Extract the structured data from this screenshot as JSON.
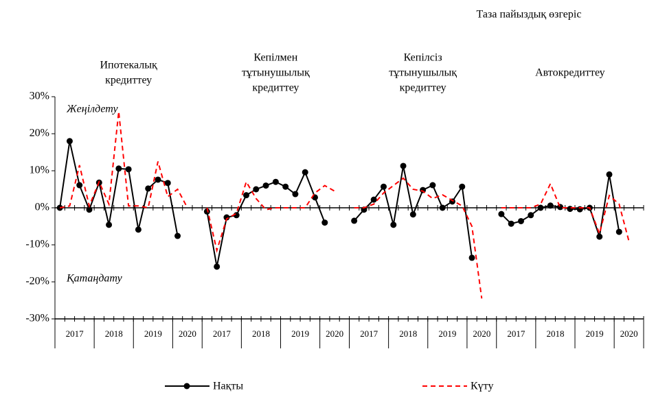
{
  "chart_data": {
    "type": "line",
    "title": "Таза пайыздық өзгеріс",
    "annotations": [
      "Жеңілдету",
      "Қатаңдату"
    ],
    "ylim": [
      -30,
      30
    ],
    "yticks": [
      {
        "value": -30,
        "label": "-30%"
      },
      {
        "value": -20,
        "label": "-20%"
      },
      {
        "value": -10,
        "label": "-10%"
      },
      {
        "value": 0,
        "label": "0%"
      },
      {
        "value": 10,
        "label": "10%"
      },
      {
        "value": 20,
        "label": "20%"
      },
      {
        "value": 30,
        "label": "30%"
      }
    ],
    "groups": [
      {
        "label": [
          "Ипотекалық",
          "кредиттеу"
        ],
        "years": [
          "2017",
          "2018",
          "2019",
          "2020"
        ]
      },
      {
        "label": [
          "Кепілмен",
          "тұтынушылық",
          "кредиттеу"
        ],
        "years": [
          "2017",
          "2018",
          "2019",
          "2020"
        ]
      },
      {
        "label": [
          "Кепілсіз",
          "тұтынушылық",
          "кредиттеу"
        ],
        "years": [
          "2017",
          "2018",
          "2019",
          "2020"
        ]
      },
      {
        "label": [
          "Автокредиттеу"
        ],
        "years": [
          "2017",
          "2018",
          "2019",
          "2020"
        ]
      }
    ],
    "categories": [
      null,
      null,
      null,
      null,
      null,
      null,
      null,
      null,
      null,
      null,
      null,
      null,
      null,
      null,
      null,
      null,
      null,
      null,
      null,
      null,
      null,
      null,
      null,
      null,
      null,
      null,
      null,
      null,
      null,
      null,
      null,
      null,
      null,
      null,
      null,
      null,
      null,
      null,
      null,
      null,
      null,
      null,
      null,
      null,
      null,
      null,
      null,
      null,
      null,
      null,
      null,
      null,
      null,
      null,
      null,
      null,
      null,
      null,
      null,
      null
    ],
    "series": [
      {
        "name": "Нақты",
        "color": "#000000",
        "dashed": false,
        "markers": true,
        "values": [
          0,
          18,
          6.1,
          -0.5,
          6.8,
          -4.6,
          10.6,
          10.4,
          -5.9,
          5.2,
          7.6,
          6.7,
          -7.6,
          null,
          null,
          -1,
          -15.9,
          -2.6,
          -2,
          3.4,
          5,
          6,
          7,
          5.7,
          3.7,
          9.6,
          2.8,
          -4,
          null,
          null,
          -3.5,
          -0.5,
          2.2,
          5.7,
          -4.6,
          11.3,
          -1.8,
          4.8,
          6.1,
          0,
          1.7,
          5.7,
          -13.5,
          null,
          null,
          -1.7,
          -4.3,
          -3.6,
          -2,
          0,
          0.6,
          0.2,
          -0.3,
          -0.4,
          0,
          -7.8,
          9,
          -6.5,
          null,
          null
        ]
      },
      {
        "name": "Күту",
        "color": "#ff0000",
        "dashed": true,
        "markers": false,
        "values": [
          0,
          0.5,
          11.5,
          0.5,
          7,
          1,
          26,
          0.5,
          0.5,
          0,
          12.5,
          3,
          5,
          0,
          null,
          0,
          -11.5,
          -3,
          -1.5,
          7,
          2.5,
          -0.5,
          0,
          0,
          0,
          0,
          4,
          6,
          4.5,
          null,
          0,
          0,
          1,
          4,
          6,
          8,
          5,
          4.5,
          2.5,
          3.5,
          2,
          0.5,
          -5,
          -24.5,
          null,
          0,
          0,
          0,
          0,
          1,
          6.5,
          0,
          0,
          0,
          0,
          -7,
          3.3,
          1,
          -9,
          null
        ]
      }
    ]
  }
}
